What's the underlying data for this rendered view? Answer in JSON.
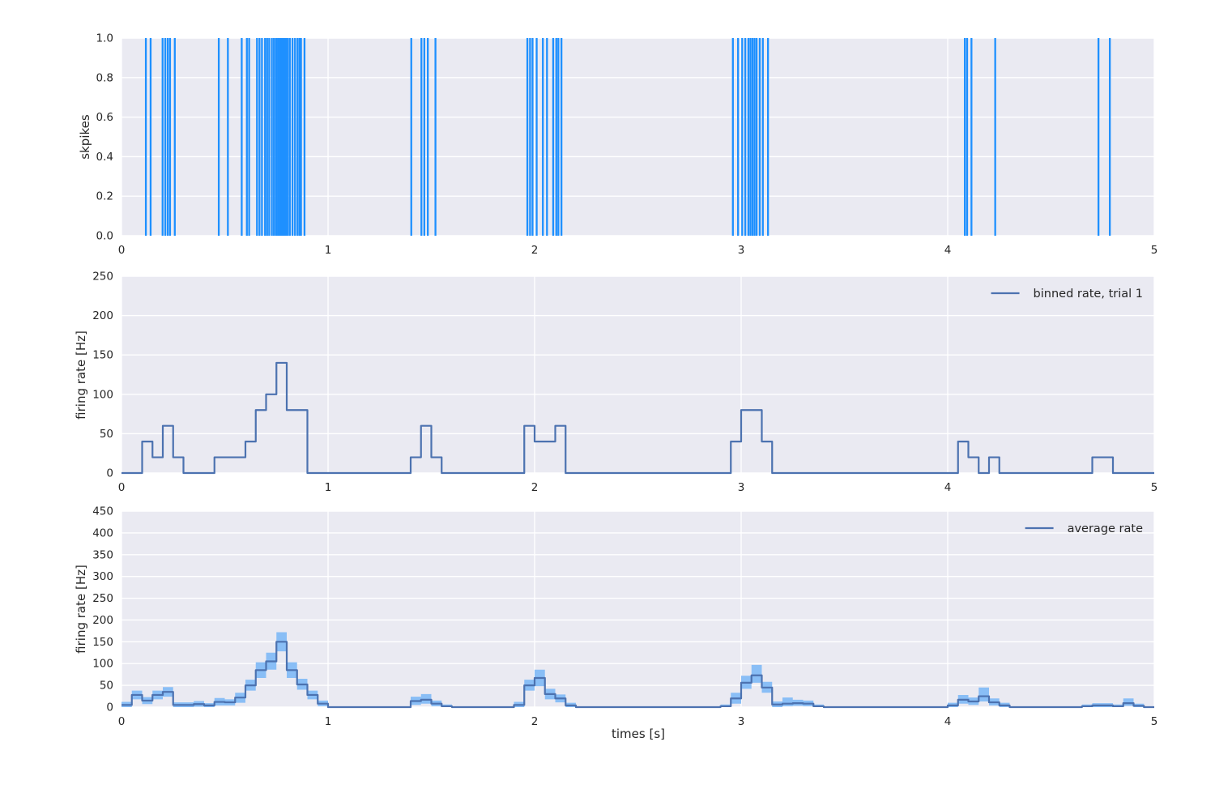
{
  "figure": {
    "background": "#ffffff",
    "axes_background": "#eaeaf2",
    "grid_color": "#ffffff",
    "tick_color": "#262626",
    "label_color": "#262626"
  },
  "chart_data": [
    {
      "type": "event_raster",
      "name": "spike-raster-plot",
      "ylabel": "skpikes",
      "xlim": [
        0,
        5
      ],
      "ylim": [
        0,
        1
      ],
      "xticks": [
        0,
        1,
        2,
        3,
        4,
        5
      ],
      "xtick_labels": [
        "0",
        "1",
        "2",
        "3",
        "4",
        "5"
      ],
      "yticks": [
        0,
        0.2,
        0.4,
        0.6,
        0.8,
        1.0
      ],
      "ytick_labels": [
        "0.0",
        "0.2",
        "0.4",
        "0.6",
        "0.8",
        "1.0"
      ],
      "color": "#1e90ff",
      "events": [
        0.118,
        0.141,
        0.199,
        0.212,
        0.224,
        0.235,
        0.258,
        0.471,
        0.515,
        0.582,
        0.607,
        0.618,
        0.656,
        0.668,
        0.68,
        0.695,
        0.705,
        0.715,
        0.728,
        0.738,
        0.748,
        0.752,
        0.76,
        0.768,
        0.775,
        0.782,
        0.79,
        0.797,
        0.805,
        0.815,
        0.828,
        0.84,
        0.852,
        0.862,
        0.869,
        0.886,
        1.403,
        1.452,
        1.466,
        1.483,
        1.52,
        1.965,
        1.978,
        1.99,
        2.01,
        2.04,
        2.06,
        2.09,
        2.105,
        2.115,
        2.13,
        2.96,
        2.985,
        3.005,
        3.02,
        3.035,
        3.045,
        3.055,
        3.065,
        3.075,
        3.09,
        3.105,
        3.13,
        4.083,
        4.094,
        4.115,
        4.23,
        4.73,
        4.785
      ]
    },
    {
      "type": "step",
      "name": "binned-rate-plot",
      "legend": "binned rate, trial 1",
      "ylabel": "firing rate [Hz]",
      "xlim": [
        0,
        5
      ],
      "ylim": [
        0,
        250
      ],
      "xticks": [
        0,
        1,
        2,
        3,
        4,
        5
      ],
      "xtick_labels": [
        "0",
        "1",
        "2",
        "3",
        "4",
        "5"
      ],
      "yticks": [
        0,
        50,
        100,
        150,
        200,
        250
      ],
      "ytick_labels": [
        "0",
        "50",
        "100",
        "150",
        "200",
        "250"
      ],
      "color": "#4c72b0",
      "bin_width": 0.05,
      "values": [
        0,
        0,
        40,
        20,
        60,
        20,
        0,
        0,
        0,
        20,
        20,
        20,
        40,
        80,
        100,
        140,
        80,
        80,
        0,
        0,
        0,
        0,
        0,
        0,
        0,
        0,
        0,
        0,
        20,
        60,
        20,
        0,
        0,
        0,
        0,
        0,
        0,
        0,
        0,
        60,
        40,
        40,
        60,
        0,
        0,
        0,
        0,
        0,
        0,
        0,
        0,
        0,
        0,
        0,
        0,
        0,
        0,
        0,
        0,
        40,
        80,
        80,
        40,
        0,
        0,
        0,
        0,
        0,
        0,
        0,
        0,
        0,
        0,
        0,
        0,
        0,
        0,
        0,
        0,
        0,
        0,
        40,
        20,
        0,
        20,
        0,
        0,
        0,
        0,
        0,
        0,
        0,
        0,
        0,
        20,
        20,
        0,
        0,
        0,
        0
      ]
    },
    {
      "type": "step_band",
      "name": "average-rate-plot",
      "legend": "average rate",
      "ylabel": "firing rate [Hz]",
      "xlabel": "times [s]",
      "xlim": [
        0,
        5
      ],
      "ylim": [
        0,
        450
      ],
      "xticks": [
        0,
        1,
        2,
        3,
        4,
        5
      ],
      "xtick_labels": [
        "0",
        "1",
        "2",
        "3",
        "4",
        "5"
      ],
      "yticks": [
        0,
        50,
        100,
        150,
        200,
        250,
        300,
        350,
        400,
        450
      ],
      "ytick_labels": [
        "0",
        "50",
        "100",
        "150",
        "200",
        "250",
        "300",
        "350",
        "400",
        "450"
      ],
      "color": "#4c72b0",
      "band_color": "#89bef6",
      "bin_width": 0.05,
      "mean": [
        5,
        28,
        15,
        28,
        35,
        5,
        5,
        7,
        4,
        12,
        11,
        22,
        50,
        85,
        105,
        150,
        85,
        52,
        28,
        8,
        0,
        0,
        0,
        0,
        0,
        0,
        0,
        0,
        14,
        17,
        8,
        2,
        0,
        0,
        0,
        0,
        0,
        0,
        5,
        50,
        67,
        30,
        20,
        4,
        0,
        0,
        0,
        0,
        0,
        0,
        0,
        0,
        0,
        0,
        0,
        0,
        0,
        0,
        2,
        20,
        56,
        73,
        45,
        6,
        8,
        9,
        8,
        2,
        0,
        0,
        0,
        0,
        0,
        0,
        0,
        0,
        0,
        0,
        0,
        0,
        4,
        17,
        13,
        25,
        11,
        4,
        0,
        0,
        0,
        0,
        0,
        0,
        0,
        2,
        4,
        4,
        2,
        9,
        3,
        0
      ],
      "upper": [
        12,
        38,
        23,
        38,
        46,
        11,
        11,
        14,
        9,
        21,
        18,
        33,
        63,
        103,
        125,
        172,
        103,
        65,
        38,
        15,
        0,
        0,
        0,
        0,
        0,
        0,
        0,
        0,
        24,
        30,
        15,
        6,
        0,
        0,
        0,
        0,
        0,
        0,
        12,
        63,
        86,
        42,
        29,
        10,
        0,
        0,
        0,
        0,
        0,
        0,
        0,
        0,
        0,
        0,
        0,
        0,
        0,
        0,
        6,
        33,
        72,
        97,
        58,
        13,
        22,
        17,
        15,
        6,
        0,
        0,
        0,
        0,
        0,
        0,
        0,
        0,
        0,
        0,
        0,
        0,
        10,
        28,
        22,
        45,
        20,
        10,
        0,
        0,
        0,
        0,
        0,
        0,
        0,
        6,
        9,
        9,
        6,
        20,
        8,
        0
      ],
      "lower": [
        0,
        18,
        7,
        18,
        24,
        0,
        0,
        1,
        0,
        4,
        4,
        10,
        38,
        67,
        86,
        128,
        67,
        40,
        18,
        2,
        0,
        0,
        0,
        0,
        0,
        0,
        0,
        0,
        5,
        8,
        2,
        0,
        0,
        0,
        0,
        0,
        0,
        0,
        0,
        38,
        48,
        18,
        11,
        0,
        0,
        0,
        0,
        0,
        0,
        0,
        0,
        0,
        0,
        0,
        0,
        0,
        0,
        0,
        0,
        8,
        42,
        56,
        33,
        0,
        2,
        3,
        2,
        0,
        0,
        0,
        0,
        0,
        0,
        0,
        0,
        0,
        0,
        0,
        0,
        0,
        0,
        8,
        5,
        13,
        4,
        0,
        0,
        0,
        0,
        0,
        0,
        0,
        0,
        0,
        0,
        0,
        0,
        3,
        0,
        0
      ]
    }
  ]
}
